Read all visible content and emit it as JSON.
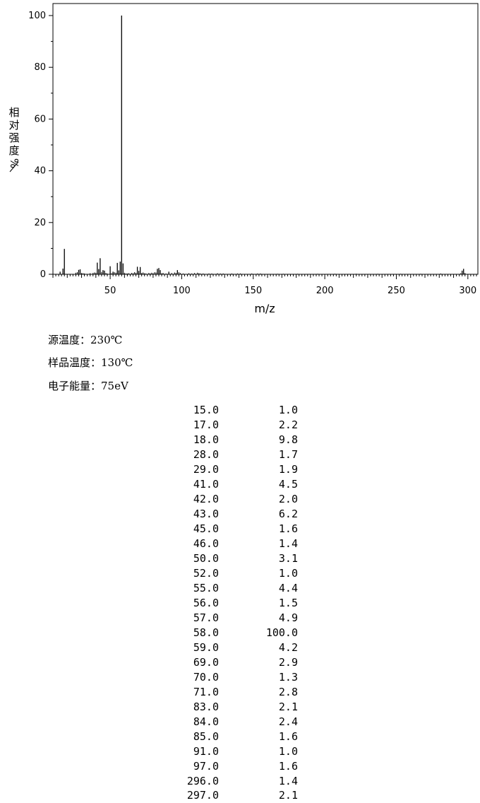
{
  "chart_data": {
    "type": "bar",
    "xlabel": "m/z",
    "ylabel_chars": [
      "相",
      "对",
      "强",
      "度",
      "%"
    ],
    "xlim": [
      10,
      307
    ],
    "ylim": [
      0,
      100
    ],
    "xticks": [
      50,
      100,
      150,
      200,
      250,
      300
    ],
    "yticks": [
      0,
      20,
      40,
      60,
      80,
      100
    ],
    "grid": false,
    "x": [
      15,
      17,
      18,
      28,
      29,
      41,
      42,
      43,
      45,
      46,
      50,
      52,
      55,
      56,
      57,
      58,
      59,
      69,
      70,
      71,
      83,
      84,
      85,
      91,
      97,
      296,
      297
    ],
    "values": [
      1.0,
      2.2,
      9.8,
      1.7,
      1.9,
      4.5,
      2.0,
      6.2,
      1.6,
      1.4,
      3.1,
      1.0,
      4.4,
      1.5,
      4.9,
      100.0,
      4.2,
      2.9,
      1.3,
      2.8,
      2.1,
      2.4,
      1.6,
      1.0,
      1.6,
      1.4,
      2.1
    ],
    "minor_peaks": [
      [
        26,
        0.6
      ],
      [
        27,
        0.8
      ],
      [
        30,
        0.5
      ],
      [
        31,
        0.4
      ],
      [
        32,
        0.3
      ],
      [
        36,
        0.4
      ],
      [
        38,
        0.5
      ],
      [
        39,
        0.7
      ],
      [
        40,
        0.6
      ],
      [
        44,
        0.9
      ],
      [
        47,
        0.5
      ],
      [
        48,
        0.3
      ],
      [
        51,
        0.4
      ],
      [
        53,
        0.8
      ],
      [
        54,
        0.6
      ],
      [
        60,
        0.6
      ],
      [
        61,
        0.3
      ],
      [
        62,
        0.3
      ],
      [
        63,
        0.4
      ],
      [
        65,
        0.5
      ],
      [
        66,
        0.4
      ],
      [
        67,
        0.8
      ],
      [
        68,
        0.6
      ],
      [
        72,
        0.5
      ],
      [
        73,
        0.7
      ],
      [
        74,
        0.4
      ],
      [
        75,
        0.3
      ],
      [
        77,
        0.5
      ],
      [
        78,
        0.3
      ],
      [
        79,
        0.6
      ],
      [
        80,
        0.4
      ],
      [
        81,
        0.8
      ],
      [
        82,
        0.7
      ],
      [
        86,
        0.4
      ],
      [
        87,
        0.5
      ],
      [
        89,
        0.3
      ],
      [
        93,
        0.5
      ],
      [
        95,
        0.7
      ],
      [
        96,
        0.5
      ],
      [
        98,
        0.8
      ],
      [
        99,
        0.5
      ],
      [
        101,
        0.3
      ],
      [
        105,
        0.4
      ],
      [
        107,
        0.3
      ],
      [
        109,
        0.5
      ],
      [
        111,
        0.6
      ],
      [
        112,
        0.4
      ],
      [
        113,
        0.3
      ],
      [
        115,
        0.3
      ],
      [
        119,
        0.3
      ],
      [
        121,
        0.3
      ],
      [
        125,
        0.4
      ],
      [
        127,
        0.3
      ],
      [
        129,
        0.3
      ],
      [
        135,
        0.3
      ],
      [
        139,
        0.3
      ],
      [
        141,
        0.3
      ],
      [
        149,
        0.3
      ],
      [
        153,
        0.3
      ],
      [
        155,
        0.3
      ],
      [
        167,
        0.2
      ],
      [
        171,
        0.2
      ],
      [
        181,
        0.2
      ],
      [
        195,
        0.2
      ],
      [
        207,
        0.2
      ],
      [
        222,
        0.2
      ],
      [
        237,
        0.2
      ],
      [
        253,
        0.2
      ],
      [
        267,
        0.2
      ],
      [
        281,
        0.3
      ],
      [
        295,
        0.4
      ],
      [
        298,
        0.5
      ]
    ]
  },
  "conditions": [
    "源温度：230℃",
    "样品温度：130℃",
    "电子能量：75eV"
  ],
  "peaks": [
    {
      "mz": "15.0",
      "intensity": "1.0"
    },
    {
      "mz": "17.0",
      "intensity": "2.2"
    },
    {
      "mz": "18.0",
      "intensity": "9.8"
    },
    {
      "mz": "28.0",
      "intensity": "1.7"
    },
    {
      "mz": "29.0",
      "intensity": "1.9"
    },
    {
      "mz": "41.0",
      "intensity": "4.5"
    },
    {
      "mz": "42.0",
      "intensity": "2.0"
    },
    {
      "mz": "43.0",
      "intensity": "6.2"
    },
    {
      "mz": "45.0",
      "intensity": "1.6"
    },
    {
      "mz": "46.0",
      "intensity": "1.4"
    },
    {
      "mz": "50.0",
      "intensity": "3.1"
    },
    {
      "mz": "52.0",
      "intensity": "1.0"
    },
    {
      "mz": "55.0",
      "intensity": "4.4"
    },
    {
      "mz": "56.0",
      "intensity": "1.5"
    },
    {
      "mz": "57.0",
      "intensity": "4.9"
    },
    {
      "mz": "58.0",
      "intensity": "100.0"
    },
    {
      "mz": "59.0",
      "intensity": "4.2"
    },
    {
      "mz": "69.0",
      "intensity": "2.9"
    },
    {
      "mz": "70.0",
      "intensity": "1.3"
    },
    {
      "mz": "71.0",
      "intensity": "2.8"
    },
    {
      "mz": "83.0",
      "intensity": "2.1"
    },
    {
      "mz": "84.0",
      "intensity": "2.4"
    },
    {
      "mz": "85.0",
      "intensity": "1.6"
    },
    {
      "mz": "91.0",
      "intensity": "1.0"
    },
    {
      "mz": "97.0",
      "intensity": "1.6"
    },
    {
      "mz": "296.0",
      "intensity": "1.4"
    },
    {
      "mz": "297.0",
      "intensity": "2.1"
    }
  ]
}
